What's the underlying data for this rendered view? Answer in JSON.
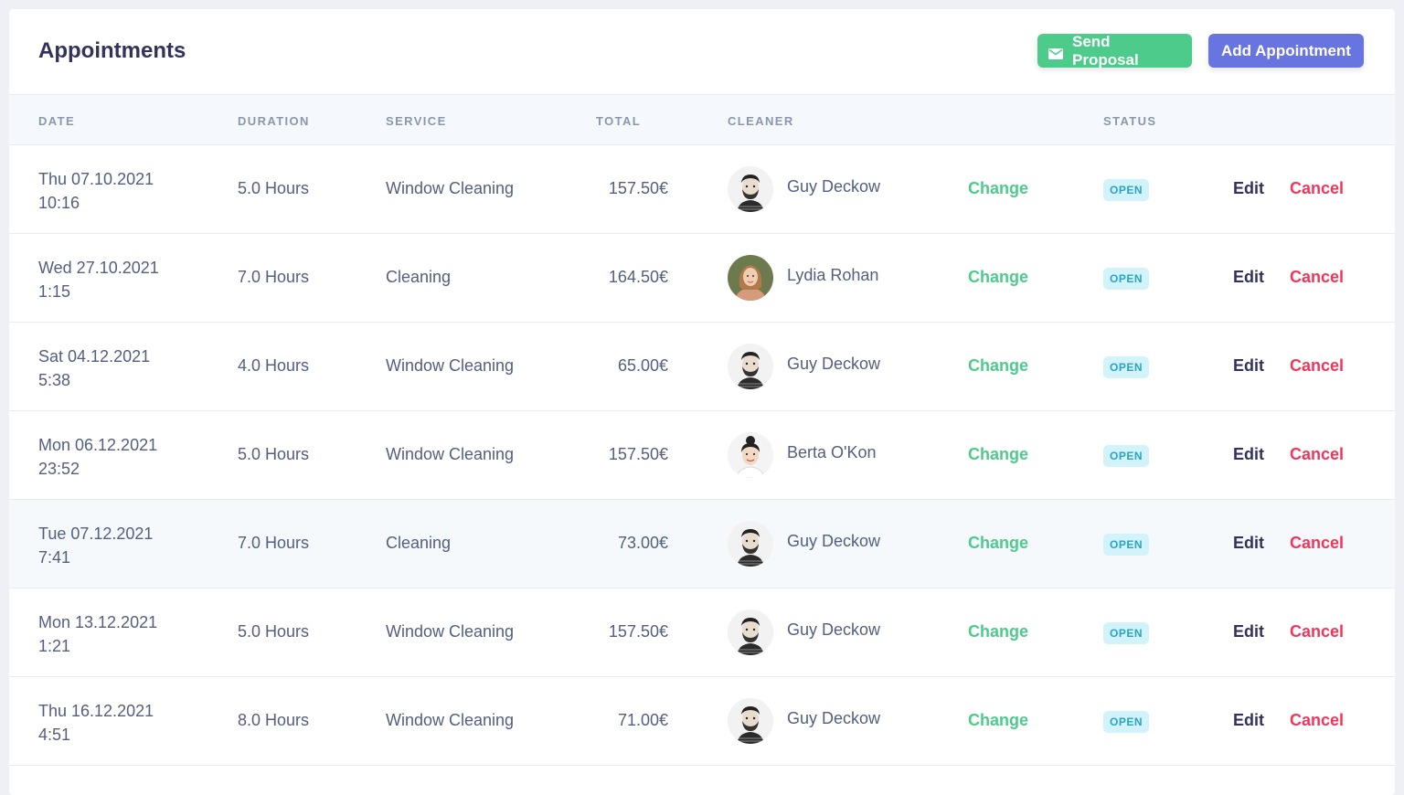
{
  "header": {
    "title": "Appointments",
    "send_proposal_label": "Send Proposal",
    "add_appointment_label": "Add Appointment",
    "send_icon": "envelope-icon"
  },
  "columns": {
    "date": "DATE",
    "duration": "DURATION",
    "service": "SERVICE",
    "total": "TOTAL",
    "cleaner": "CLEANER",
    "status": "STATUS"
  },
  "colors": {
    "accent_green": "#4dcb8b",
    "accent_blue": "#6874e0",
    "cancel_red": "#f0365a",
    "badge_bg": "#d3f3fb",
    "badge_text": "#29a3c4"
  },
  "rows": [
    {
      "day": "Thu 07.10.2021",
      "time": "10:16",
      "duration": "5.0 Hours",
      "service": "Window Cleaning",
      "total": "157.50€",
      "cleaner": "Guy Deckow",
      "avatar": "male-beard",
      "change": "Change",
      "status": "OPEN",
      "edit": "Edit",
      "cancel": "Cancel"
    },
    {
      "day": "Wed 27.10.2021",
      "time": "1:15",
      "duration": "7.0 Hours",
      "service": "Cleaning",
      "total": "164.50€",
      "cleaner": "Lydia Rohan",
      "avatar": "female-long-hair",
      "change": "Change",
      "status": "OPEN",
      "edit": "Edit",
      "cancel": "Cancel"
    },
    {
      "day": "Sat 04.12.2021",
      "time": "5:38",
      "duration": "4.0 Hours",
      "service": "Window Cleaning",
      "total": "65.00€",
      "cleaner": "Guy Deckow",
      "avatar": "male-beard",
      "change": "Change",
      "status": "OPEN",
      "edit": "Edit",
      "cancel": "Cancel"
    },
    {
      "day": "Mon 06.12.2021",
      "time": "23:52",
      "duration": "5.0 Hours",
      "service": "Window Cleaning",
      "total": "157.50€",
      "cleaner": "Berta O'Kon",
      "avatar": "female-bun",
      "change": "Change",
      "status": "OPEN",
      "edit": "Edit",
      "cancel": "Cancel"
    },
    {
      "day": "Tue 07.12.2021",
      "time": "7:41",
      "duration": "7.0 Hours",
      "service": "Cleaning",
      "total": "73.00€",
      "cleaner": "Guy Deckow",
      "avatar": "male-beard",
      "change": "Change",
      "status": "OPEN",
      "edit": "Edit",
      "cancel": "Cancel"
    },
    {
      "day": "Mon 13.12.2021",
      "time": "1:21",
      "duration": "5.0 Hours",
      "service": "Window Cleaning",
      "total": "157.50€",
      "cleaner": "Guy Deckow",
      "avatar": "male-beard",
      "change": "Change",
      "status": "OPEN",
      "edit": "Edit",
      "cancel": "Cancel"
    },
    {
      "day": "Thu 16.12.2021",
      "time": "4:51",
      "duration": "8.0 Hours",
      "service": "Window Cleaning",
      "total": "71.00€",
      "cleaner": "Guy Deckow",
      "avatar": "male-beard",
      "change": "Change",
      "status": "OPEN",
      "edit": "Edit",
      "cancel": "Cancel"
    }
  ]
}
